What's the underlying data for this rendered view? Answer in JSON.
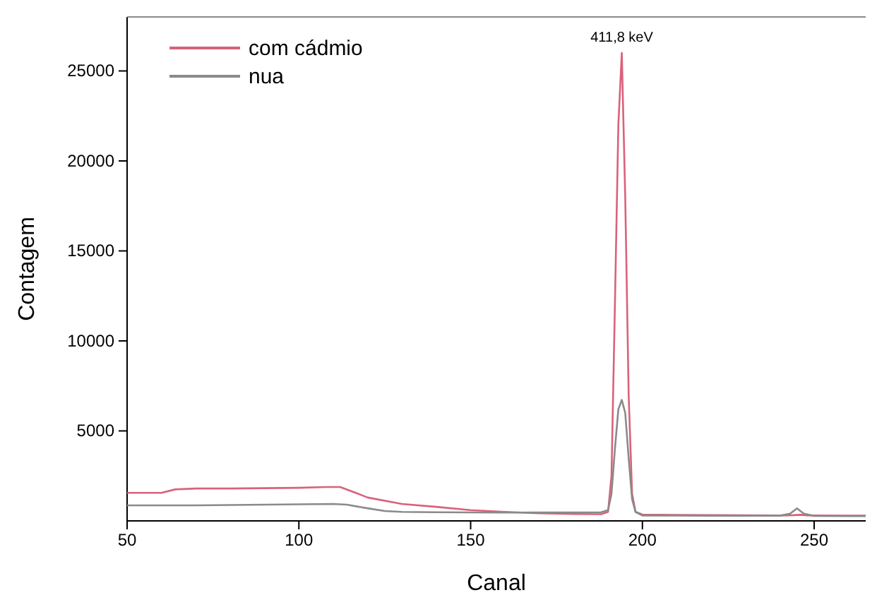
{
  "chart_data": {
    "type": "line",
    "xlabel": "Canal",
    "ylabel": "Contagem",
    "xlim": [
      50,
      265
    ],
    "ylim": [
      0,
      28000
    ],
    "xticks": [
      50,
      100,
      150,
      200,
      250
    ],
    "yticks": [
      5000,
      10000,
      15000,
      20000,
      25000
    ],
    "legend": "top left",
    "annotations": [
      {
        "text": "411,8 keV",
        "x": 194,
        "y": 26000
      }
    ],
    "series": [
      {
        "name": "com cádmio",
        "color": "#d9627a",
        "x": [
          50,
          60,
          64,
          70,
          80,
          90,
          100,
          108,
          112,
          116,
          120,
          130,
          140,
          150,
          160,
          170,
          180,
          188,
          190,
          191,
          192,
          193,
          194,
          195,
          196,
          197,
          198,
          200,
          210,
          220,
          230,
          240,
          244,
          246,
          248,
          250,
          260,
          265
        ],
        "values": [
          1560,
          1560,
          1750,
          1800,
          1800,
          1820,
          1840,
          1880,
          1880,
          1600,
          1300,
          940,
          780,
          600,
          500,
          420,
          380,
          370,
          500,
          2500,
          12000,
          22000,
          26000,
          18000,
          7000,
          1500,
          500,
          350,
          330,
          320,
          310,
          300,
          320,
          340,
          310,
          300,
          290,
          290
        ]
      },
      {
        "name": "nua",
        "color": "#8a8a8a",
        "x": [
          50,
          60,
          70,
          80,
          90,
          100,
          110,
          114,
          120,
          125,
          130,
          140,
          150,
          160,
          170,
          180,
          188,
          190,
          191,
          192,
          193,
          194,
          195,
          196,
          197,
          198,
          200,
          210,
          220,
          230,
          240,
          243,
          245,
          247,
          250,
          260,
          265
        ],
        "values": [
          860,
          860,
          860,
          880,
          900,
          920,
          940,
          900,
          700,
          550,
          500,
          480,
          470,
          460,
          470,
          470,
          480,
          600,
          1500,
          4000,
          6200,
          6720,
          6000,
          3500,
          1200,
          500,
          300,
          300,
          290,
          290,
          290,
          400,
          700,
          400,
          280,
          270,
          270
        ]
      }
    ]
  }
}
